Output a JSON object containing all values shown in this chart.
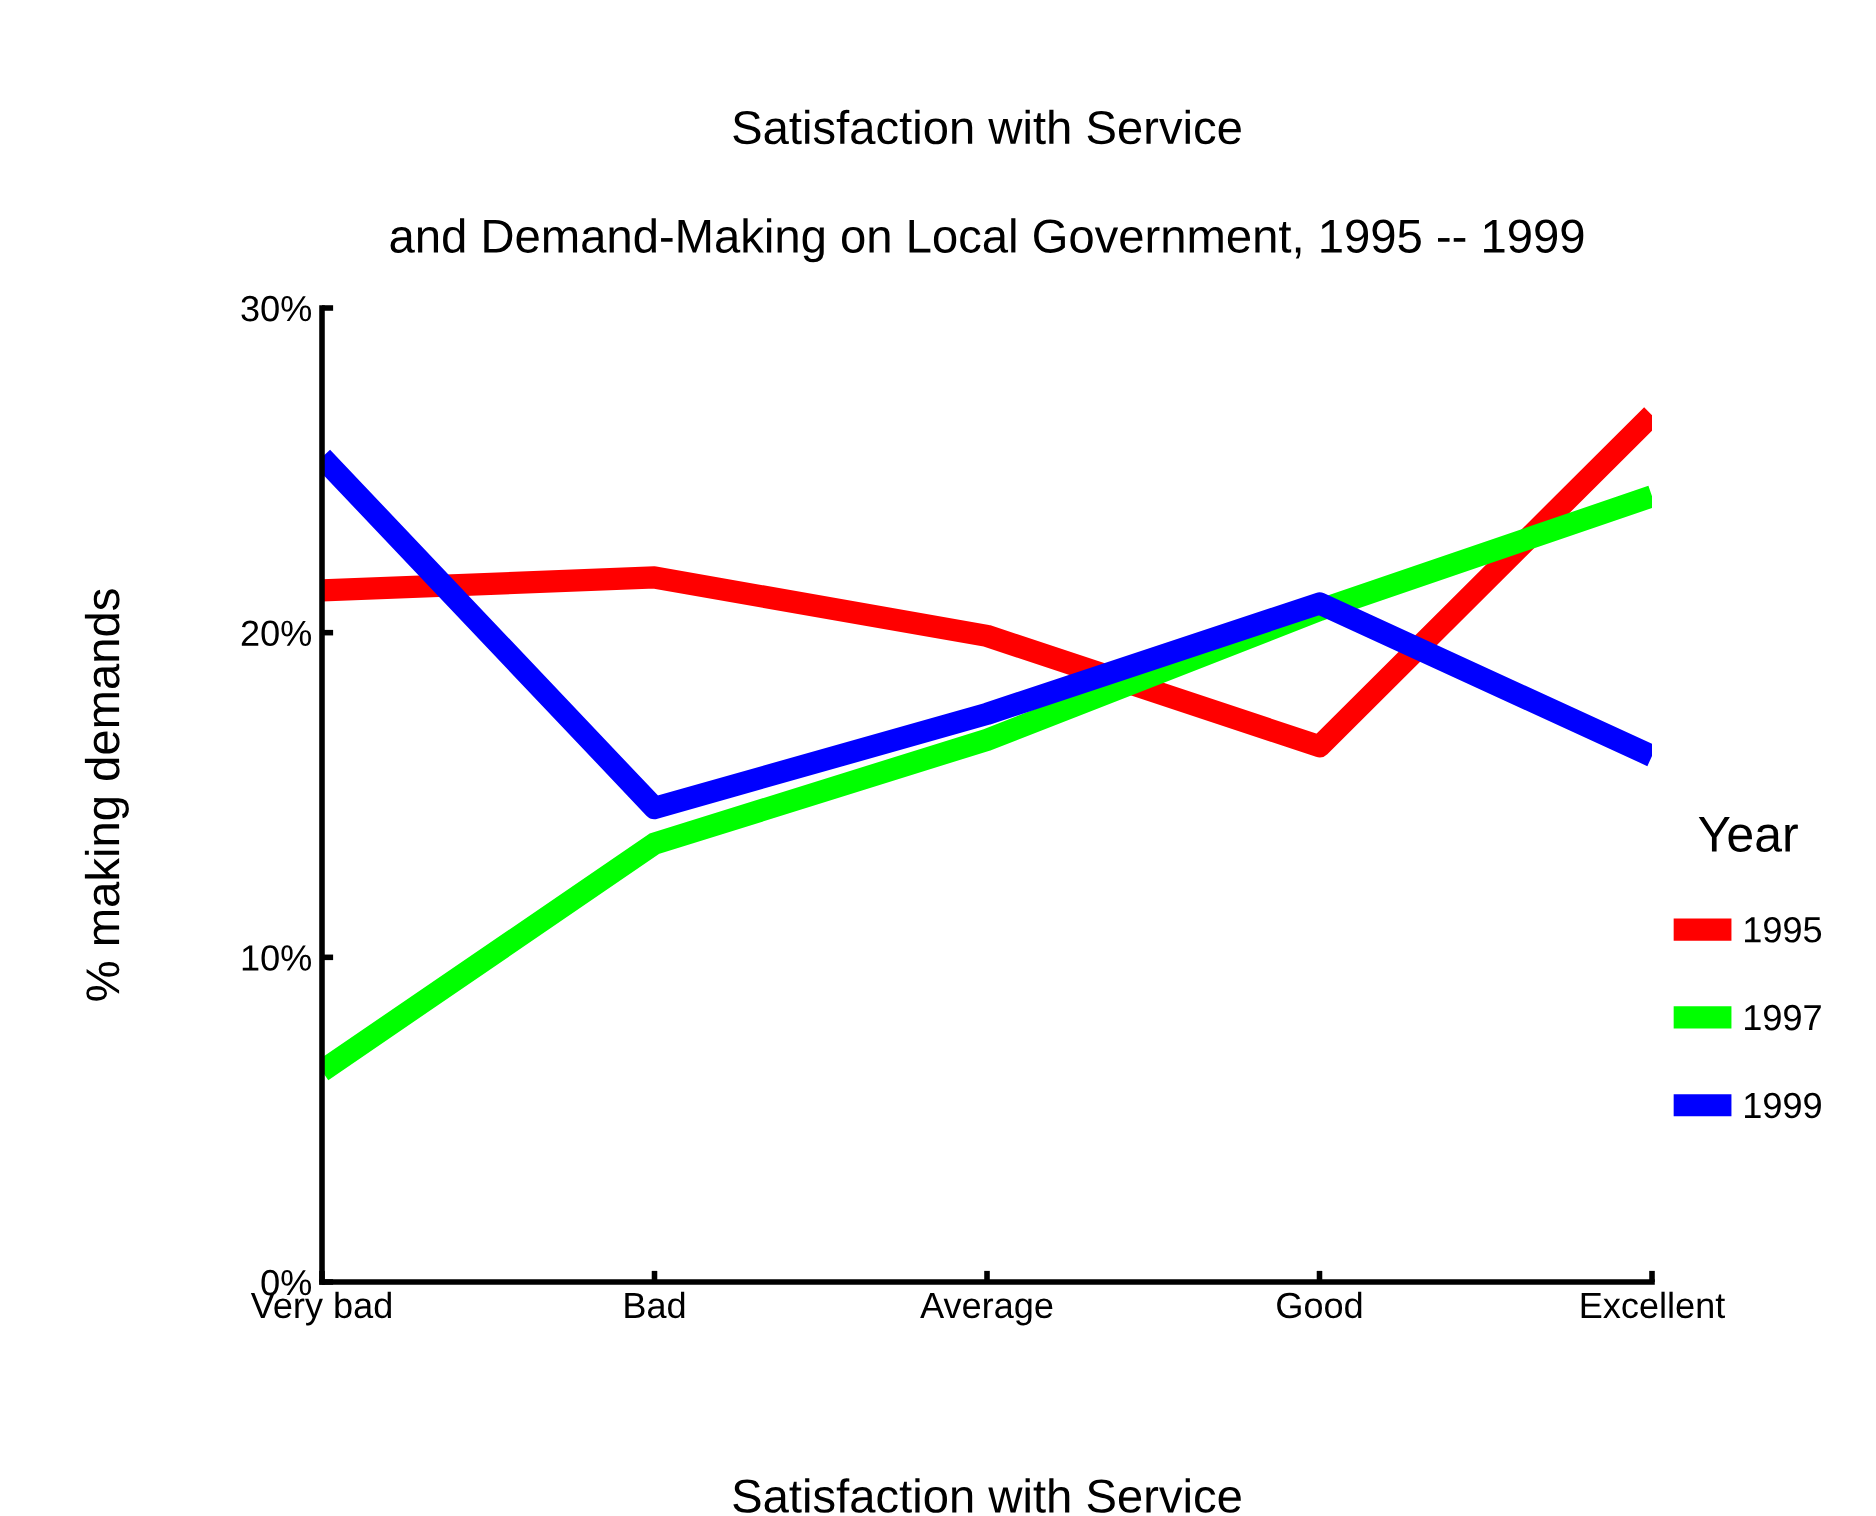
{
  "chart_data": {
    "type": "line",
    "title": "Satisfaction with Service\n\nand Demand-Making on Local Government, 1995 -- 1999",
    "xlabel": "Satisfaction with Service",
    "ylabel": "% making demands",
    "legend_title": "Year",
    "legend": "right",
    "categories": [
      "Very bad",
      "Bad",
      "Average",
      "Good",
      "Excellent"
    ],
    "ylim": [
      0,
      30
    ],
    "yticks": [
      {
        "value": 0,
        "label": "0%"
      },
      {
        "value": 10,
        "label": "10%"
      },
      {
        "value": 20,
        "label": "20%"
      },
      {
        "value": 30,
        "label": "30%"
      }
    ],
    "grid": false,
    "marker": "none",
    "line_style": "solid",
    "series": [
      {
        "name": "1995",
        "color": "#ff0000",
        "values": [
          21.3,
          21.7,
          19.9,
          16.5,
          26.7
        ]
      },
      {
        "name": "1997",
        "color": "#00ff00",
        "values": [
          6.5,
          13.5,
          16.7,
          20.7,
          24.2
        ]
      },
      {
        "name": "1999",
        "color": "#0000ff",
        "values": [
          25.4,
          14.6,
          17.5,
          20.9,
          16.2
        ]
      }
    ]
  }
}
